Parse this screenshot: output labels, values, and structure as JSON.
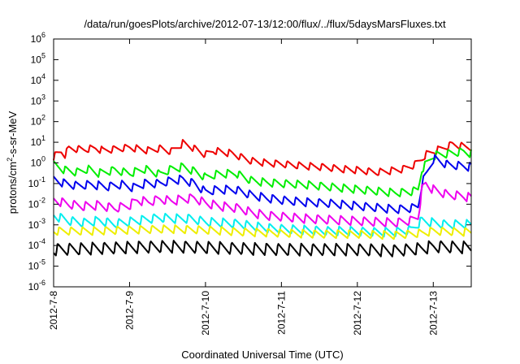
{
  "chart_data": {
    "type": "line",
    "title": "/data/run/goesPlots/archive/2012-07-13/12:00/flux/../flux/5daysMarsFluxes.txt",
    "xlabel": "Coordinated Universal Time (UTC)",
    "ylabel": "protons/cm2-s-sr-MeV",
    "ylabel_parts": {
      "before": "protons/cm",
      "sup": "2",
      "after": "-s-sr-MeV"
    },
    "y_scale": "log",
    "ylim": [
      -6,
      6
    ],
    "y_ticks": [
      {
        "mantissa": "10",
        "exp": "-6",
        "value": -6
      },
      {
        "mantissa": "10",
        "exp": "-5",
        "value": -5
      },
      {
        "mantissa": "10",
        "exp": "-4",
        "value": -4
      },
      {
        "mantissa": "10",
        "exp": "-3",
        "value": -3
      },
      {
        "mantissa": "10",
        "exp": "-2",
        "value": -2
      },
      {
        "mantissa": "10",
        "exp": "-1",
        "value": -1
      },
      {
        "mantissa": "10",
        "exp": "0",
        "value": 0
      },
      {
        "mantissa": "10",
        "exp": "1",
        "value": 1
      },
      {
        "mantissa": "10",
        "exp": "2",
        "value": 2
      },
      {
        "mantissa": "10",
        "exp": "3",
        "value": 3
      },
      {
        "mantissa": "10",
        "exp": "4",
        "value": 4
      },
      {
        "mantissa": "10",
        "exp": "5",
        "value": 5
      },
      {
        "mantissa": "10",
        "exp": "6",
        "value": 6
      }
    ],
    "x_range_days": [
      0,
      5.5
    ],
    "x_ticks": [
      {
        "label": "2012-7-8",
        "day": 0
      },
      {
        "label": "2012-7-9",
        "day": 1
      },
      {
        "label": "2012-7-10",
        "day": 2
      },
      {
        "label": "2012-7-11",
        "day": 3
      },
      {
        "label": "2012-7-12",
        "day": 4
      },
      {
        "label": "2012-7-13",
        "day": 5
      }
    ],
    "grid": false,
    "legend": "none",
    "series": [
      {
        "color": "#ee0000",
        "points": [
          [
            0,
            0.3
          ],
          [
            0.1,
            0.55
          ],
          [
            0.15,
            0.4
          ],
          [
            0.2,
            0.7
          ],
          [
            0.4,
            0.65
          ],
          [
            0.55,
            0.72
          ],
          [
            0.65,
            0.6
          ],
          [
            1.0,
            0.75
          ],
          [
            1.25,
            0.6
          ],
          [
            1.4,
            0.7
          ],
          [
            1.55,
            0.55
          ],
          [
            1.7,
            0.95
          ],
          [
            1.8,
            0.8
          ],
          [
            2.0,
            0.4
          ],
          [
            2.1,
            0.6
          ],
          [
            2.35,
            0.45
          ],
          [
            2.6,
            0.1
          ],
          [
            2.8,
            0.0
          ],
          [
            3.0,
            -0.05
          ],
          [
            3.3,
            -0.15
          ],
          [
            3.55,
            -0.2
          ],
          [
            3.8,
            -0.3
          ],
          [
            4.0,
            -0.35
          ],
          [
            4.25,
            -0.45
          ],
          [
            4.4,
            -0.4
          ],
          [
            4.6,
            -0.3
          ],
          [
            4.75,
            -0.1
          ],
          [
            4.85,
            0.2
          ],
          [
            4.9,
            0.4
          ],
          [
            5.0,
            0.55
          ],
          [
            5.15,
            0.75
          ],
          [
            5.25,
            0.9
          ],
          [
            5.4,
            0.8
          ],
          [
            5.5,
            0.75
          ]
        ],
        "amp": 0.35
      },
      {
        "color": "#00ee00",
        "points": [
          [
            0,
            -0.1
          ],
          [
            0.15,
            -0.35
          ],
          [
            0.3,
            -0.45
          ],
          [
            0.45,
            -0.3
          ],
          [
            0.6,
            -0.5
          ],
          [
            0.8,
            -0.35
          ],
          [
            1.0,
            -0.5
          ],
          [
            1.2,
            -0.3
          ],
          [
            1.4,
            -0.55
          ],
          [
            1.55,
            -0.3
          ],
          [
            1.7,
            -0.2
          ],
          [
            1.85,
            -0.4
          ],
          [
            2.0,
            -0.7
          ],
          [
            2.15,
            -0.55
          ],
          [
            2.4,
            -0.5
          ],
          [
            2.6,
            -0.85
          ],
          [
            2.8,
            -0.95
          ],
          [
            3.0,
            -1.0
          ],
          [
            3.3,
            -1.05
          ],
          [
            3.6,
            -1.15
          ],
          [
            3.9,
            -1.25
          ],
          [
            4.2,
            -1.35
          ],
          [
            4.5,
            -1.45
          ],
          [
            4.7,
            -1.4
          ],
          [
            4.8,
            -1.3
          ],
          [
            4.85,
            -0.3
          ],
          [
            5.0,
            0.35
          ],
          [
            5.2,
            0.45
          ],
          [
            5.4,
            0.55
          ],
          [
            5.5,
            0.45
          ]
        ],
        "amp": 0.4
      },
      {
        "color": "#0000ee",
        "points": [
          [
            0,
            -0.8
          ],
          [
            0.15,
            -1.0
          ],
          [
            0.3,
            -1.1
          ],
          [
            0.5,
            -1.05
          ],
          [
            0.7,
            -1.15
          ],
          [
            0.9,
            -1.05
          ],
          [
            1.05,
            -1.2
          ],
          [
            1.2,
            -1.0
          ],
          [
            1.4,
            -1.0
          ],
          [
            1.55,
            -0.85
          ],
          [
            1.7,
            -0.8
          ],
          [
            1.85,
            -1.0
          ],
          [
            2.0,
            -1.4
          ],
          [
            2.15,
            -1.3
          ],
          [
            2.4,
            -1.3
          ],
          [
            2.6,
            -1.55
          ],
          [
            2.8,
            -1.7
          ],
          [
            3.0,
            -1.8
          ],
          [
            3.3,
            -1.9
          ],
          [
            3.6,
            -1.95
          ],
          [
            3.9,
            -2.05
          ],
          [
            4.2,
            -2.15
          ],
          [
            4.5,
            -2.25
          ],
          [
            4.7,
            -2.2
          ],
          [
            4.8,
            -2.1
          ],
          [
            4.85,
            -1.0
          ],
          [
            4.92,
            -0.45
          ],
          [
            5.0,
            0.2
          ],
          [
            5.2,
            -0.1
          ],
          [
            5.4,
            -0.15
          ],
          [
            5.5,
            -0.2
          ]
        ],
        "amp": 0.42
      },
      {
        "color": "#ee00ee",
        "points": [
          [
            0,
            -1.8
          ],
          [
            0.2,
            -2.0
          ],
          [
            0.4,
            -2.1
          ],
          [
            0.6,
            -2.05
          ],
          [
            0.8,
            -2.2
          ],
          [
            1.0,
            -2.05
          ],
          [
            1.1,
            -1.8
          ],
          [
            1.25,
            -1.9
          ],
          [
            1.4,
            -1.75
          ],
          [
            1.55,
            -1.85
          ],
          [
            1.7,
            -1.75
          ],
          [
            1.85,
            -1.7
          ],
          [
            2.0,
            -1.95
          ],
          [
            2.2,
            -2.1
          ],
          [
            2.45,
            -2.2
          ],
          [
            2.6,
            -2.4
          ],
          [
            2.8,
            -2.55
          ],
          [
            3.0,
            -2.6
          ],
          [
            3.3,
            -2.7
          ],
          [
            3.6,
            -2.75
          ],
          [
            3.9,
            -2.8
          ],
          [
            4.2,
            -2.85
          ],
          [
            4.5,
            -2.9
          ],
          [
            4.7,
            -2.8
          ],
          [
            4.8,
            -2.6
          ],
          [
            4.85,
            -1.3
          ],
          [
            4.9,
            -1.0
          ],
          [
            5.0,
            -1.3
          ],
          [
            5.2,
            -1.55
          ],
          [
            5.4,
            -1.6
          ],
          [
            5.5,
            -1.7
          ]
        ],
        "amp": 0.45
      },
      {
        "color": "#00eeee",
        "points": [
          [
            0,
            -2.55
          ],
          [
            0.2,
            -2.8
          ],
          [
            0.4,
            -2.9
          ],
          [
            0.6,
            -2.8
          ],
          [
            0.8,
            -2.95
          ],
          [
            1.0,
            -2.85
          ],
          [
            1.2,
            -2.75
          ],
          [
            1.4,
            -2.65
          ],
          [
            1.6,
            -2.7
          ],
          [
            1.8,
            -2.7
          ],
          [
            2.0,
            -2.85
          ],
          [
            2.2,
            -2.9
          ],
          [
            2.45,
            -2.95
          ],
          [
            2.6,
            -3.05
          ],
          [
            2.8,
            -3.15
          ],
          [
            3.0,
            -3.2
          ],
          [
            3.3,
            -3.25
          ],
          [
            3.6,
            -3.3
          ],
          [
            3.9,
            -3.3
          ],
          [
            4.2,
            -3.35
          ],
          [
            4.5,
            -3.35
          ],
          [
            4.7,
            -3.25
          ],
          [
            4.85,
            -2.8
          ],
          [
            5.0,
            -2.9
          ],
          [
            5.2,
            -3.0
          ],
          [
            5.4,
            -2.95
          ],
          [
            5.5,
            -3.0
          ]
        ],
        "amp": 0.45
      },
      {
        "color": "#eeee00",
        "points": [
          [
            0,
            -3.3
          ],
          [
            0.5,
            -3.3
          ],
          [
            1.0,
            -3.25
          ],
          [
            1.5,
            -3.2
          ],
          [
            2.0,
            -3.25
          ],
          [
            2.5,
            -3.35
          ],
          [
            3.0,
            -3.4
          ],
          [
            3.5,
            -3.45
          ],
          [
            4.0,
            -3.45
          ],
          [
            4.5,
            -3.5
          ],
          [
            4.85,
            -3.4
          ],
          [
            5.0,
            -3.3
          ],
          [
            5.5,
            -3.35
          ]
        ],
        "amp": 0.4
      },
      {
        "color": "#000000",
        "points": [
          [
            0,
            -4.2
          ],
          [
            0.5,
            -4.15
          ],
          [
            1.0,
            -4.1
          ],
          [
            1.5,
            -4.05
          ],
          [
            2.0,
            -4.1
          ],
          [
            2.5,
            -4.15
          ],
          [
            3.0,
            -4.2
          ],
          [
            3.5,
            -4.2
          ],
          [
            4.0,
            -4.2
          ],
          [
            4.5,
            -4.25
          ],
          [
            4.85,
            -4.15
          ],
          [
            5.0,
            -4.05
          ],
          [
            5.5,
            -4.1
          ]
        ],
        "amp": 0.6
      }
    ]
  }
}
